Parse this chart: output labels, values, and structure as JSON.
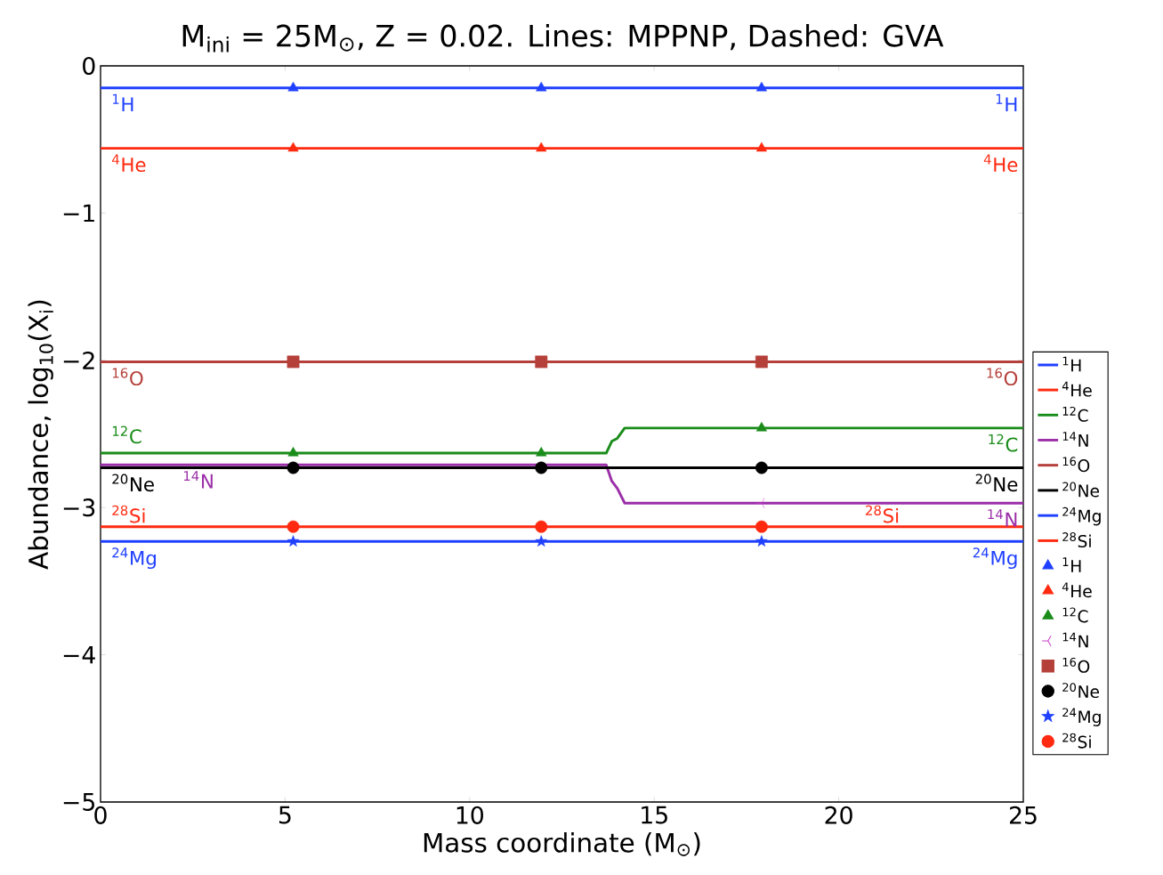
{
  "chart_data": {
    "type": "line",
    "title": "M$_{ini}$ = 25M$_{⊙}$, Z = 0.02.  Lines: MPPNP, Dashed: GVA",
    "xlabel": "Mass coordinate (M$_{⊙}$)",
    "ylabel": "Abundance, log$_{10}$(X$_{i}$)",
    "xlim": [
      0,
      25
    ],
    "xticks": [
      0,
      5,
      10,
      15,
      20,
      25
    ],
    "ylim": [
      -5,
      0
    ],
    "yticks": [
      {
        "value": -5,
        "label": "−5"
      },
      {
        "value": -4,
        "label": "−4"
      },
      {
        "value": -3,
        "label": "−3"
      },
      {
        "value": -2,
        "label": "−2"
      },
      {
        "value": -1,
        "label": "−1"
      },
      0
    ],
    "legend": "right",
    "grid": false,
    "series": [
      {
        "name": "$^{1}$H",
        "line_style": "solid",
        "color": "#2040ff",
        "x": [
          0,
          25
        ],
        "values": [
          -0.15,
          -0.15
        ]
      },
      {
        "name": "$^{4}$He",
        "line_style": "solid",
        "color": "#ff2a10",
        "x": [
          0,
          25
        ],
        "values": [
          -0.56,
          -0.56
        ]
      },
      {
        "name": "$^{12}$C",
        "line_style": "solid",
        "color": "#1a8c1a",
        "x": [
          0,
          13.7,
          13.85,
          14.0,
          14.2,
          25
        ],
        "values": [
          -2.63,
          -2.63,
          -2.55,
          -2.53,
          -2.46,
          -2.46
        ]
      },
      {
        "name": "$^{14}$N",
        "line_style": "solid",
        "color": "#9b30a8",
        "x": [
          0,
          13.7,
          13.85,
          14.0,
          14.2,
          25
        ],
        "values": [
          -2.71,
          -2.71,
          -2.82,
          -2.87,
          -2.97,
          -2.97
        ]
      },
      {
        "name": "$^{16}$O",
        "line_style": "solid",
        "color": "#b5403a",
        "x": [
          0,
          25
        ],
        "values": [
          -2.01,
          -2.01
        ]
      },
      {
        "name": "$^{20}$Ne",
        "line_style": "solid",
        "color": "#000000",
        "x": [
          0,
          25
        ],
        "values": [
          -2.73,
          -2.73
        ]
      },
      {
        "name": "$^{24}$Mg",
        "line_style": "solid",
        "color": "#2040ff",
        "x": [
          0,
          25
        ],
        "values": [
          -3.23,
          -3.23
        ]
      },
      {
        "name": "$^{28}$Si",
        "line_style": "solid",
        "color": "#ff2a10",
        "x": [
          0,
          25
        ],
        "values": [
          -3.13,
          -3.13
        ]
      },
      {
        "name": "$^{1}$H",
        "type": "scatter",
        "marker": "triangle",
        "color": "#2040ff",
        "x": [
          5.22,
          11.94,
          17.91
        ],
        "values": [
          -0.15,
          -0.15,
          -0.15
        ]
      },
      {
        "name": "$^{4}$He",
        "type": "scatter",
        "marker": "triangle",
        "color": "#ff2a10",
        "x": [
          5.22,
          11.94,
          17.91
        ],
        "values": [
          -0.56,
          -0.56,
          -0.56
        ]
      },
      {
        "name": "$^{12}$C",
        "type": "scatter",
        "marker": "triangle",
        "color": "#1a8c1a",
        "x": [
          5.22,
          11.94,
          17.91
        ],
        "values": [
          -2.63,
          -2.63,
          -2.46
        ]
      },
      {
        "name": "$^{14}$N",
        "type": "scatter",
        "marker": "cross",
        "color": "#cc44cc",
        "x": [
          17.91
        ],
        "values": [
          -2.97
        ]
      },
      {
        "name": "$^{16}$O",
        "type": "scatter",
        "marker": "square",
        "color": "#b5403a",
        "x": [
          5.22,
          11.94,
          17.91
        ],
        "values": [
          -2.01,
          -2.01,
          -2.01
        ]
      },
      {
        "name": "$^{20}$Ne",
        "type": "scatter",
        "marker": "circle",
        "color": "#000000",
        "x": [
          5.22,
          11.94,
          17.91
        ],
        "values": [
          -2.73,
          -2.73,
          -2.73
        ]
      },
      {
        "name": "$^{24}$Mg",
        "type": "scatter",
        "marker": "star",
        "color": "#2040ff",
        "x": [
          5.22,
          11.94,
          17.91
        ],
        "values": [
          -3.23,
          -3.23,
          -3.23
        ]
      },
      {
        "name": "$^{28}$Si",
        "type": "scatter",
        "marker": "circle",
        "color": "#ff2a10",
        "x": [
          5.22,
          11.94,
          17.91
        ],
        "values": [
          -3.13,
          -3.13,
          -3.13
        ]
      }
    ],
    "annotations": [
      "$^{1}$H",
      "$^{1}$H",
      "$^{4}$He",
      "$^{4}$He",
      "$^{12}$C",
      "$^{12}$C",
      "$^{14}$N",
      "$^{14}$N",
      "$^{16}$O",
      "$^{16}$O",
      "$^{20}$Ne",
      "$^{20}$Ne",
      "$^{24}$Mg",
      "$^{24}$Mg",
      "$^{28}$Si",
      "$^{28}$Si"
    ]
  }
}
